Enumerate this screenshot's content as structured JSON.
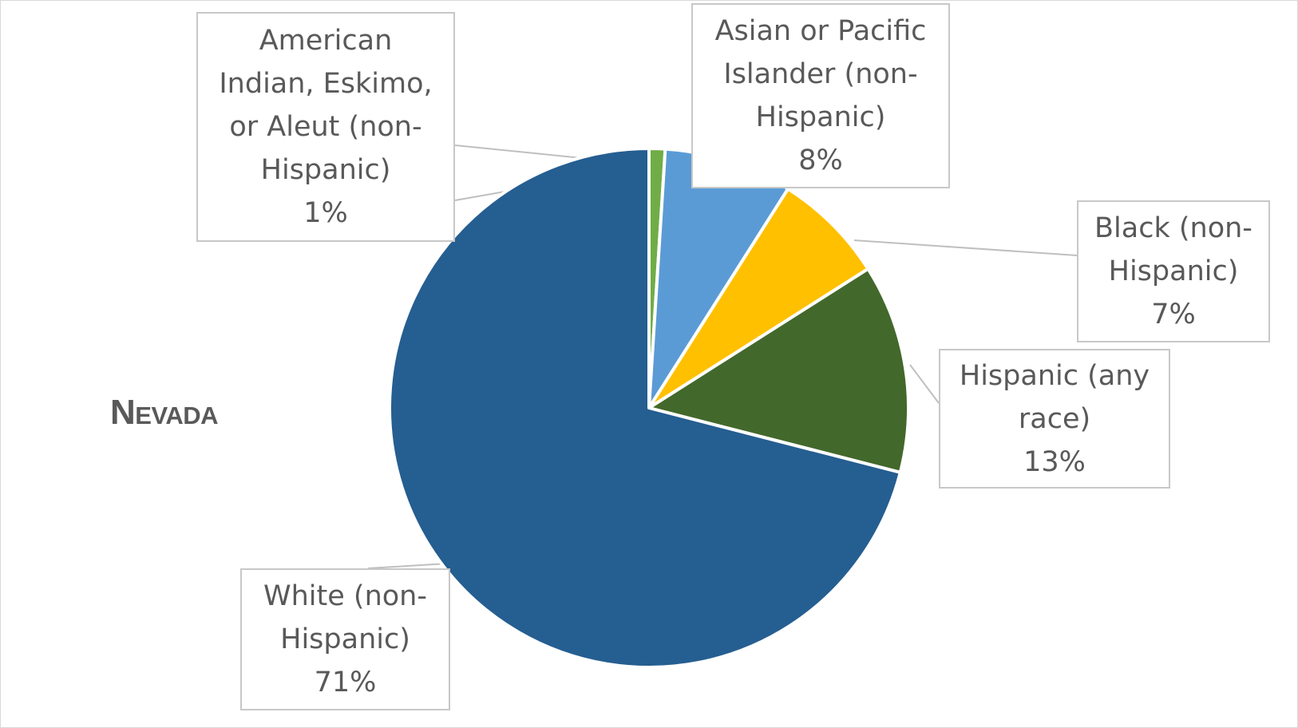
{
  "chart_data": {
    "type": "pie",
    "title": "Nevada",
    "start_angle_deg": 0,
    "direction": "clockwise",
    "slices": [
      {
        "label_lines": [
          "American",
          "Indian, Eskimo,",
          "or Aleut (non-",
          "Hispanic)"
        ],
        "value": 1,
        "value_label": "1%",
        "color": "#70ad47"
      },
      {
        "label_lines": [
          "Asian or Pacific",
          "Islander (non-",
          "Hispanic)"
        ],
        "value": 8,
        "value_label": "8%",
        "color": "#5b9bd5"
      },
      {
        "label_lines": [
          "Black (non-",
          "Hispanic)"
        ],
        "value": 7,
        "value_label": "7%",
        "color": "#ffc000"
      },
      {
        "label_lines": [
          "Hispanic (any",
          "race)"
        ],
        "value": 13,
        "value_label": "13%",
        "color": "#43682b"
      },
      {
        "label_lines": [
          "White (non-",
          "Hispanic)"
        ],
        "value": 71,
        "value_label": "71%",
        "color": "#255e91"
      }
    ]
  }
}
